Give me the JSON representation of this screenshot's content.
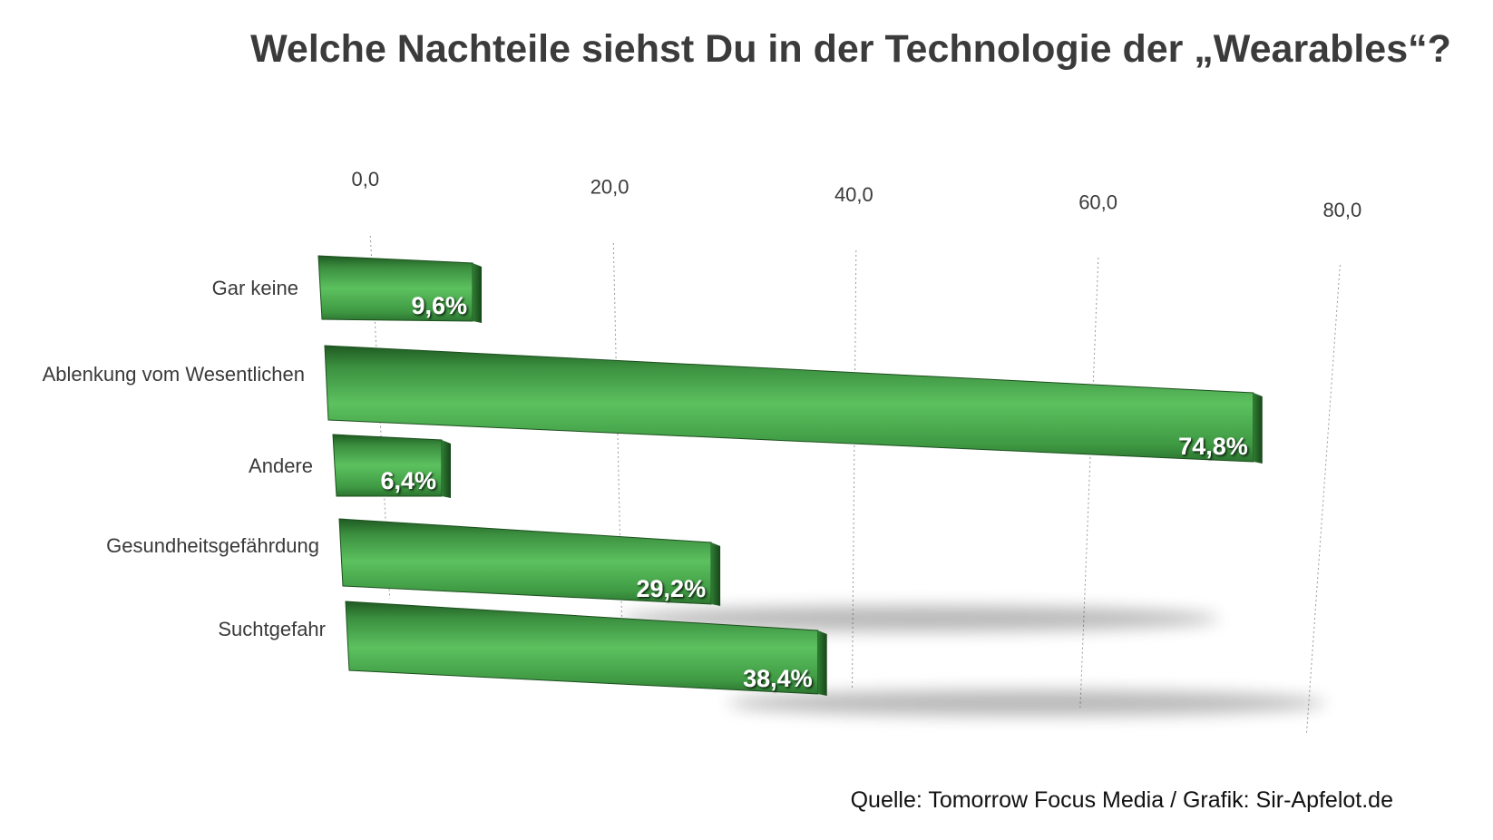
{
  "chart_data": {
    "type": "bar",
    "orientation": "horizontal",
    "title": "Welche Nachteile siehst Du in der Technologie der „Wearables“?",
    "categories": [
      "Gar keine",
      "Ablenkung vom Wesentlichen",
      "Andere",
      "Gesundheitsgefährdung",
      "Suchtgefahr"
    ],
    "values": [
      9.6,
      74.8,
      6.4,
      29.2,
      38.4
    ],
    "value_labels": [
      "9,6%",
      "74,8%",
      "6,4%",
      "29,2%",
      "38,4%"
    ],
    "ticks": [
      "0,0",
      "20,0",
      "40,0",
      "60,0",
      "80,0"
    ],
    "tick_values": [
      0,
      20,
      40,
      60,
      80
    ],
    "xlim": [
      0,
      80
    ],
    "grid": true,
    "style": "3d-perspective",
    "colors": {
      "bar": "#4aa84e",
      "bar_dark": "#1f5a22",
      "label": "#ffffff"
    }
  },
  "source": "Quelle: Tomorrow Focus Media / Grafik: Sir-Apfelot.de"
}
